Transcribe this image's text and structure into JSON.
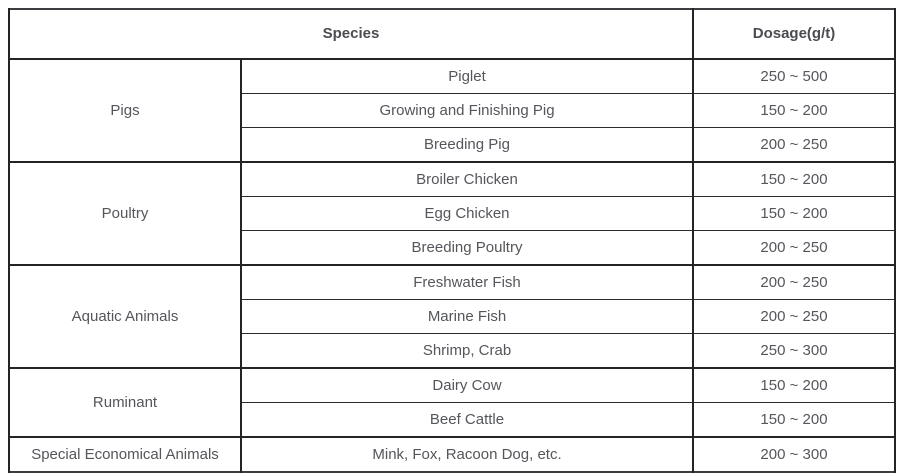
{
  "table": {
    "columns": [
      "Species",
      "Dosage(g/t)"
    ],
    "groups": [
      {
        "name": "Pigs",
        "rows": [
          {
            "species": "Piglet",
            "dosage": "250 ~ 500"
          },
          {
            "species": "Growing and Finishing Pig",
            "dosage": "150 ~ 200"
          },
          {
            "species": "Breeding Pig",
            "dosage": "200 ~ 250"
          }
        ]
      },
      {
        "name": "Poultry",
        "rows": [
          {
            "species": "Broiler Chicken",
            "dosage": "150 ~ 200"
          },
          {
            "species": "Egg Chicken",
            "dosage": "150 ~ 200"
          },
          {
            "species": "Breeding Poultry",
            "dosage": "200 ~ 250"
          }
        ]
      },
      {
        "name": "Aquatic Animals",
        "rows": [
          {
            "species": "Freshwater Fish",
            "dosage": "200 ~ 250"
          },
          {
            "species": "Marine Fish",
            "dosage": "200 ~ 250"
          },
          {
            "species": "Shrimp, Crab",
            "dosage": "250 ~ 300"
          }
        ]
      },
      {
        "name": "Ruminant",
        "rows": [
          {
            "species": "Dairy Cow",
            "dosage": "150 ~ 200"
          },
          {
            "species": "Beef Cattle",
            "dosage": "150 ~ 200"
          }
        ]
      },
      {
        "name": "Special Economical Animals",
        "rows": [
          {
            "species": "Mink, Fox, Racoon Dog, etc.",
            "dosage": "200 ~ 300"
          }
        ]
      }
    ]
  },
  "chart_data": {
    "type": "table",
    "title": "",
    "columns": [
      "Species",
      "Dosage(g/t)"
    ],
    "rows": [
      [
        "Pigs",
        "Piglet",
        "250 ~ 500"
      ],
      [
        "Pigs",
        "Growing and Finishing Pig",
        "150 ~ 200"
      ],
      [
        "Pigs",
        "Breeding Pig",
        "200 ~ 250"
      ],
      [
        "Poultry",
        "Broiler Chicken",
        "150 ~ 200"
      ],
      [
        "Poultry",
        "Egg Chicken",
        "150 ~ 200"
      ],
      [
        "Poultry",
        "Breeding Poultry",
        "200 ~ 250"
      ],
      [
        "Aquatic Animals",
        "Freshwater Fish",
        "200 ~ 250"
      ],
      [
        "Aquatic Animals",
        "Marine Fish",
        "200 ~ 250"
      ],
      [
        "Aquatic Animals",
        "Shrimp, Crab",
        "250 ~ 300"
      ],
      [
        "Ruminant",
        "Dairy Cow",
        "150 ~ 200"
      ],
      [
        "Ruminant",
        "Beef Cattle",
        "150 ~ 200"
      ],
      [
        "Special Economical Animals",
        "Mink, Fox, Racoon Dog, etc.",
        "200 ~ 300"
      ]
    ],
    "layout": {
      "header_colspan_note": "Species header spans group and sub-species columns",
      "border_color": "#232426",
      "text_color": "#54565b",
      "background": "#ffffff"
    }
  }
}
